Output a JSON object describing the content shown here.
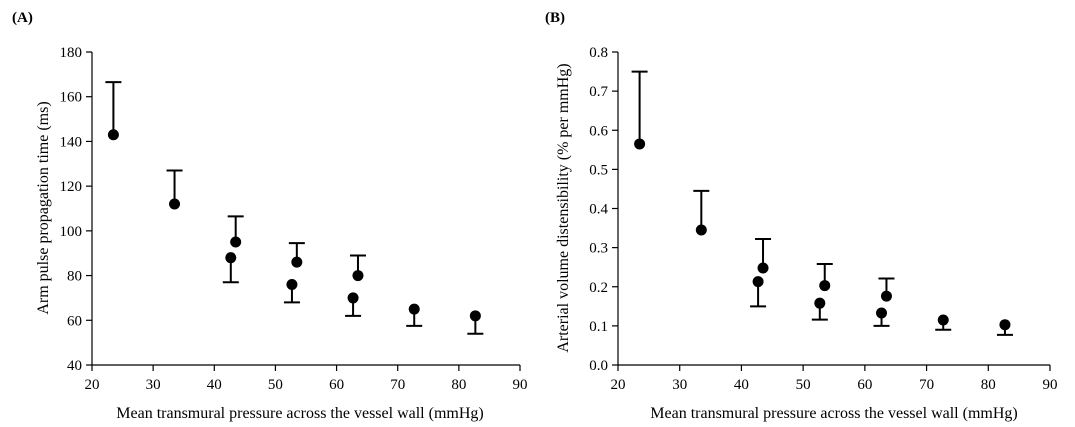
{
  "chart_data": [
    {
      "type": "scatter",
      "panel_label": "(A)",
      "xlabel": "Mean transmural pressure across the vessel wall (mmHg)",
      "ylabel": "Arm pulse propagation time (ms)",
      "xlim": [
        20,
        90
      ],
      "ylim": [
        40,
        180
      ],
      "xticks": [
        20,
        30,
        40,
        50,
        60,
        70,
        80,
        90
      ],
      "yticks": [
        40,
        60,
        80,
        100,
        120,
        140,
        160,
        180
      ],
      "grid": false,
      "points": [
        {
          "x": 23.5,
          "y": 143,
          "err_dir": "up",
          "err_end": 166.5
        },
        {
          "x": 33.5,
          "y": 112,
          "err_dir": "up",
          "err_end": 127
        },
        {
          "x": 42.7,
          "y": 88,
          "err_dir": "down",
          "err_end": 77
        },
        {
          "x": 43.5,
          "y": 95,
          "err_dir": "up",
          "err_end": 106.5
        },
        {
          "x": 52.7,
          "y": 76,
          "err_dir": "down",
          "err_end": 68
        },
        {
          "x": 53.5,
          "y": 86,
          "err_dir": "up",
          "err_end": 94.5
        },
        {
          "x": 62.7,
          "y": 70,
          "err_dir": "down",
          "err_end": 62
        },
        {
          "x": 63.5,
          "y": 80,
          "err_dir": "up",
          "err_end": 89
        },
        {
          "x": 72.7,
          "y": 65,
          "err_dir": "down",
          "err_end": 57.5
        },
        {
          "x": 82.7,
          "y": 62,
          "err_dir": "down",
          "err_end": 54
        }
      ]
    },
    {
      "type": "scatter",
      "panel_label": "(B)",
      "xlabel": "Mean transmural pressure across the vessel wall (mmHg)",
      "ylabel": "Arterial volume distensibility (% per mmHg)",
      "xlim": [
        20,
        90
      ],
      "ylim": [
        0,
        0.8
      ],
      "xticks": [
        20,
        30,
        40,
        50,
        60,
        70,
        80,
        90
      ],
      "yticks": [
        "0.0",
        "0.1",
        "0.2",
        "0.3",
        "0.4",
        "0.5",
        "0.6",
        "0.7",
        "0.8"
      ],
      "grid": false,
      "points": [
        {
          "x": 23.5,
          "y": 0.565,
          "err_dir": "up",
          "err_end": 0.75
        },
        {
          "x": 33.5,
          "y": 0.345,
          "err_dir": "up",
          "err_end": 0.445
        },
        {
          "x": 42.7,
          "y": 0.213,
          "err_dir": "down",
          "err_end": 0.15
        },
        {
          "x": 43.5,
          "y": 0.248,
          "err_dir": "up",
          "err_end": 0.322
        },
        {
          "x": 52.7,
          "y": 0.158,
          "err_dir": "down",
          "err_end": 0.116
        },
        {
          "x": 53.5,
          "y": 0.203,
          "err_dir": "up",
          "err_end": 0.258
        },
        {
          "x": 62.7,
          "y": 0.133,
          "err_dir": "down",
          "err_end": 0.1
        },
        {
          "x": 63.5,
          "y": 0.176,
          "err_dir": "up",
          "err_end": 0.221
        },
        {
          "x": 72.7,
          "y": 0.115,
          "err_dir": "down",
          "err_end": 0.09
        },
        {
          "x": 82.7,
          "y": 0.103,
          "err_dir": "down",
          "err_end": 0.077
        }
      ]
    }
  ]
}
